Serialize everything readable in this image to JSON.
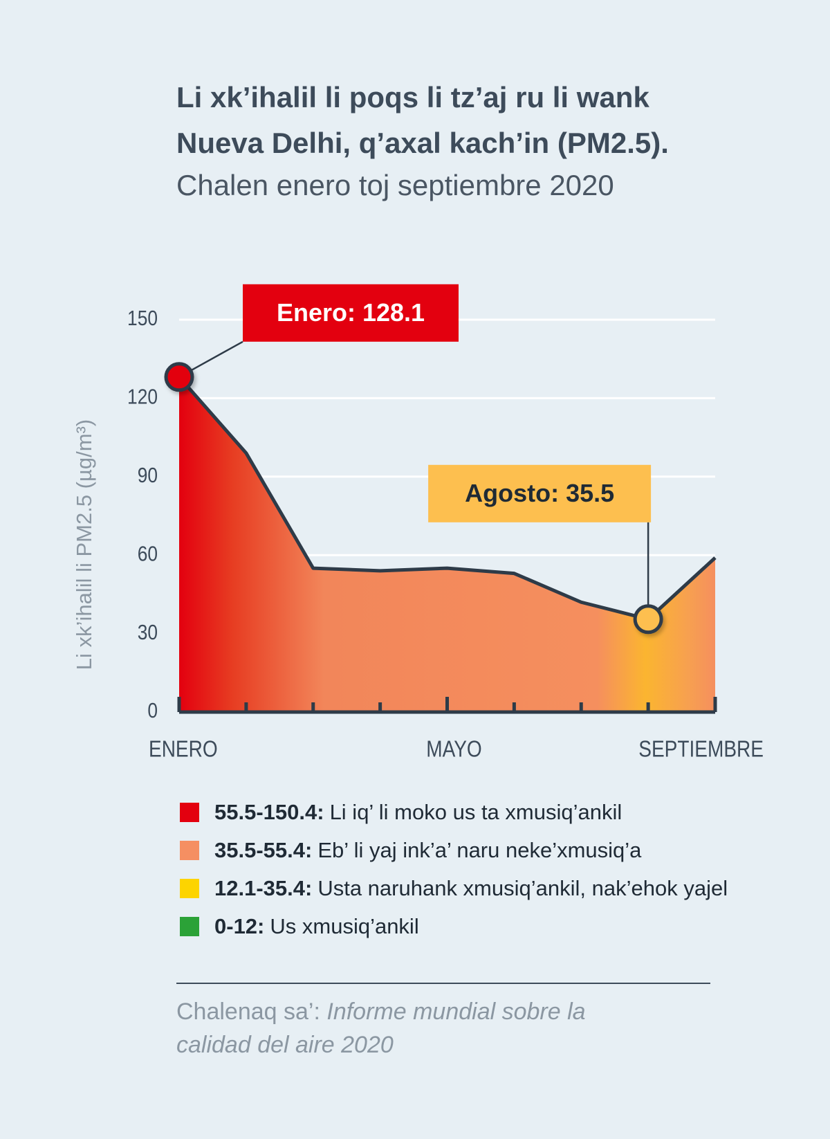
{
  "chart_data": {
    "type": "area",
    "title": "Li xk’ihalil li poqs li tz’aj ru li wank Nueva Delhi, q’axal kach’in (PM2.5).",
    "subtitle": "Chalen enero toj septiembre 2020",
    "y_label": "Li xk’ihalil li PM2.5 (µg/m³)",
    "categories": [
      "ENERO",
      null,
      null,
      null,
      "MAYO",
      null,
      null,
      null,
      "SEPTIEMBRE"
    ],
    "values": [
      128.1,
      99,
      55,
      54,
      55,
      53,
      42,
      35.5,
      59
    ],
    "value_labels": [
      "Enero: 128.1",
      null,
      null,
      null,
      null,
      null,
      null,
      "Agosto: 35.5",
      null
    ],
    "ylim": [
      0,
      150
    ],
    "yticks": [
      0,
      30,
      60,
      90,
      120,
      150
    ],
    "grid": true,
    "line_color": "#2e3b48",
    "legend": [
      {
        "range": "55.5-150.4:",
        "label": "Li iq’ li moko us ta xmusiq’ankil",
        "color": "#e3000f"
      },
      {
        "range": "35.5-55.4:",
        "label": "Eb’ li yaj ink’a’ naru neke’xmusiq’a",
        "color": "#f58f62"
      },
      {
        "range": "12.1-35.4:",
        "label": "Usta naruhank xmusiq’ankil, nak’ehok yajel",
        "color": "#fdd400"
      },
      {
        "range": "0-12:",
        "label": "Us xmusiq’ankil",
        "color": "#2ba237"
      }
    ],
    "source_label": "Chalenaq sa’:",
    "source": "Informe mundial sobre la calidad del aire 2020"
  }
}
